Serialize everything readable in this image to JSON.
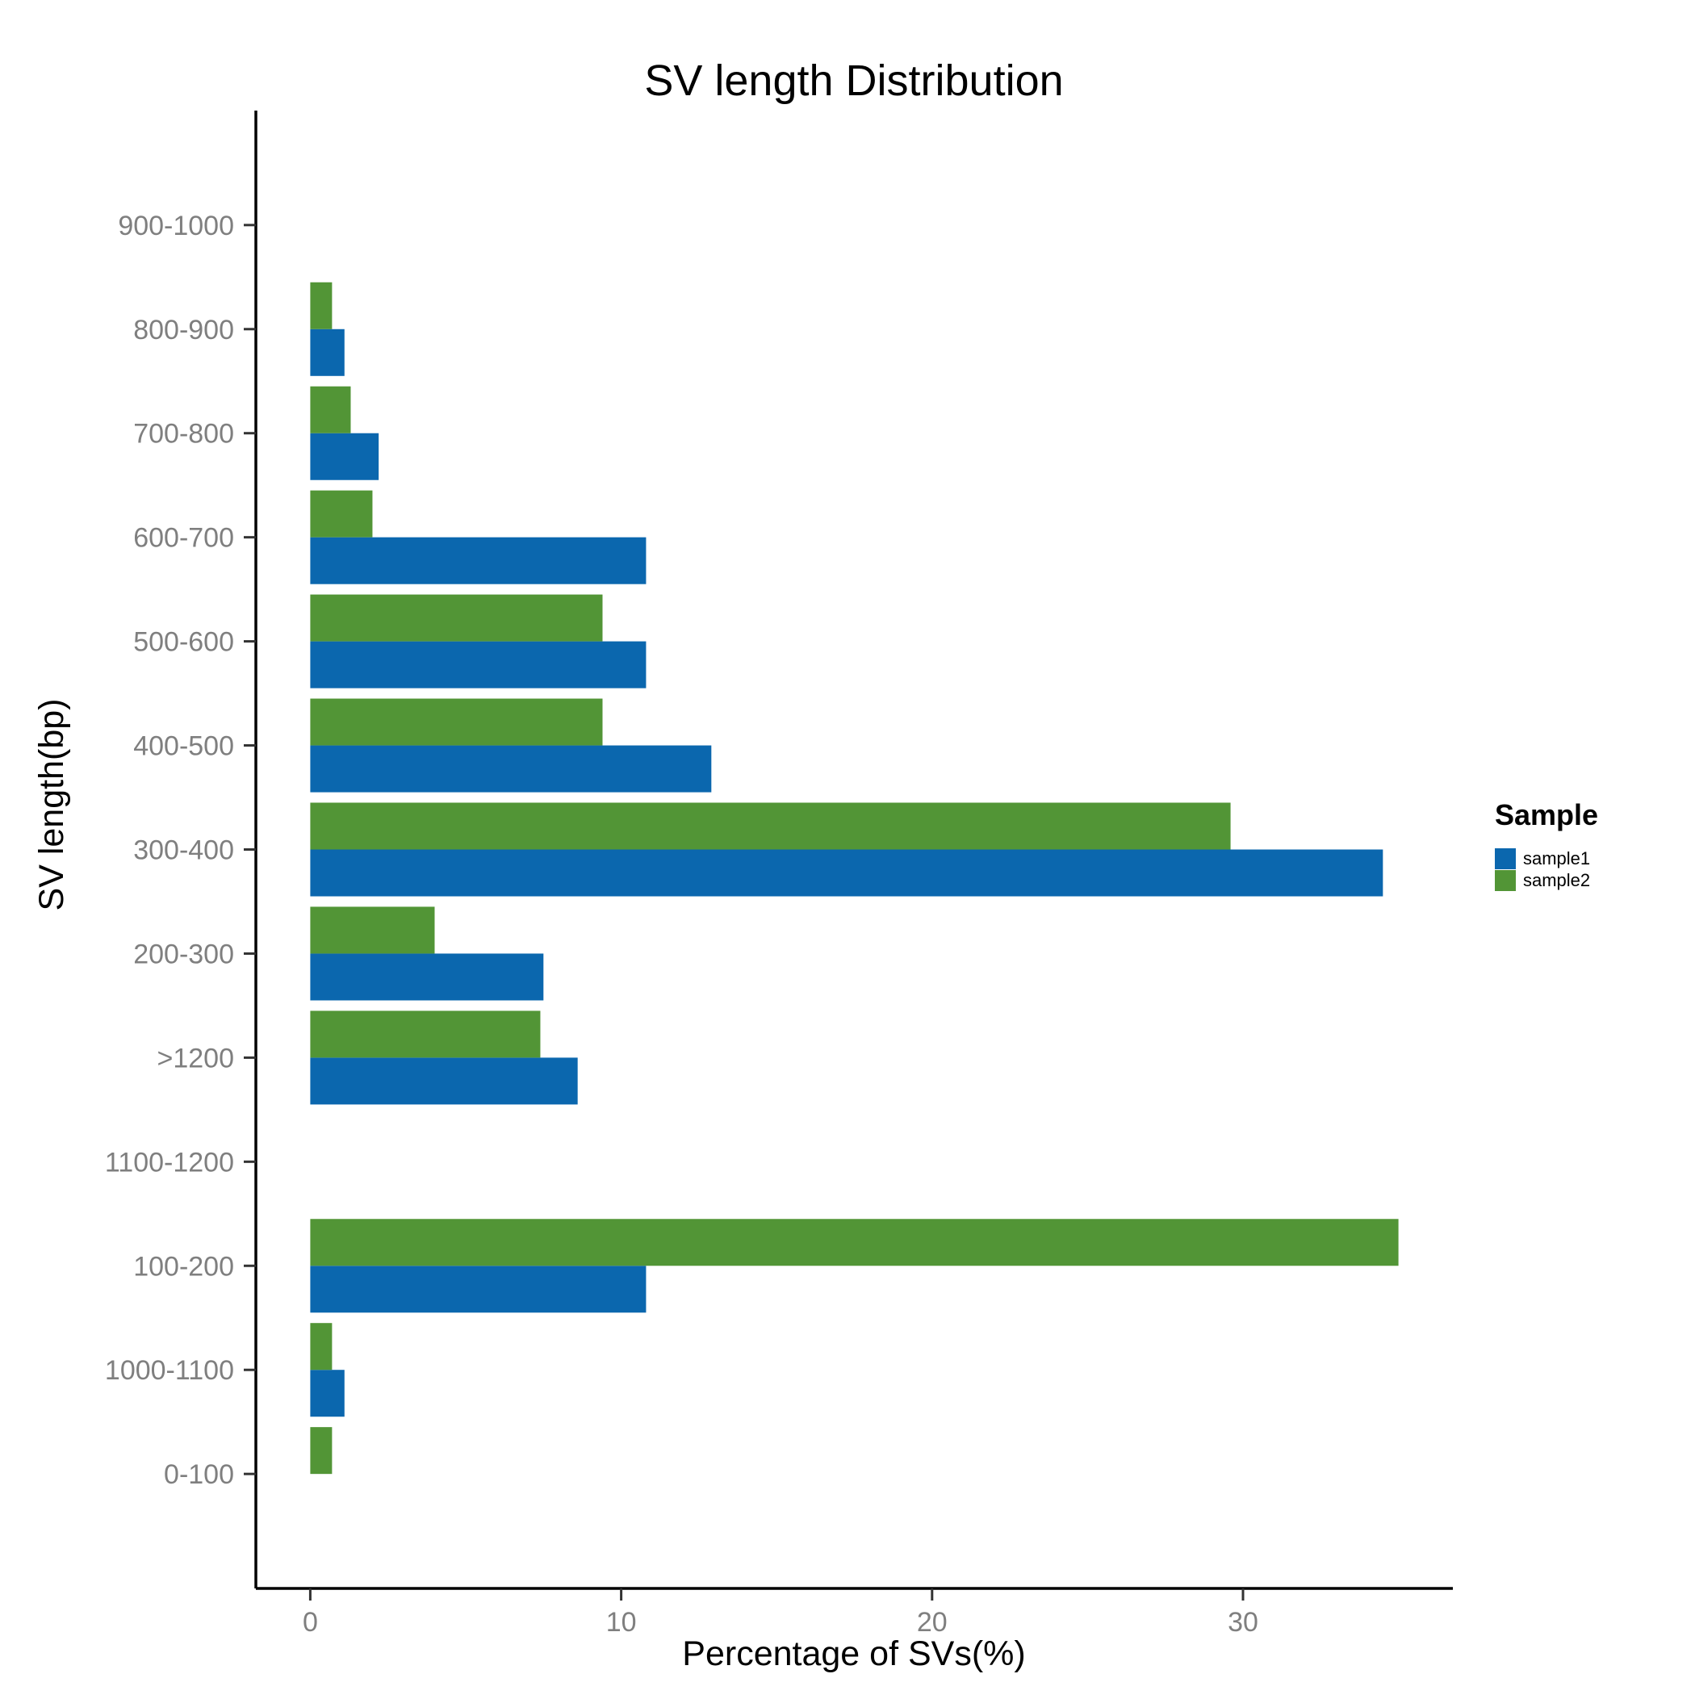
{
  "chart_data": {
    "type": "bar",
    "orientation": "horizontal",
    "title": "SV length Distribution",
    "xlabel": "Percentage of SVs(%)",
    "ylabel": "SV length(bp)",
    "categories": [
      "0-100",
      "1000-1100",
      "100-200",
      "1100-1200",
      ">1200",
      "200-300",
      "300-400",
      "400-500",
      "500-600",
      "600-700",
      "700-800",
      "800-900",
      "900-1000"
    ],
    "series": [
      {
        "name": "sample1",
        "color": "#0b67ae",
        "values": [
          0,
          1.1,
          10.8,
          0,
          8.6,
          7.5,
          34.5,
          12.9,
          10.8,
          10.8,
          2.2,
          1.1,
          0
        ]
      },
      {
        "name": "sample2",
        "color": "#529536",
        "values": [
          0.7,
          0.7,
          35.0,
          0,
          7.4,
          4.0,
          29.6,
          9.4,
          9.4,
          2.0,
          1.3,
          0.7,
          0
        ]
      }
    ],
    "xlim": [
      -1.75,
      36.75
    ],
    "xticks": [
      0,
      10,
      20,
      30
    ],
    "grid": false,
    "legend": {
      "title": "Sample",
      "position": "right"
    }
  }
}
